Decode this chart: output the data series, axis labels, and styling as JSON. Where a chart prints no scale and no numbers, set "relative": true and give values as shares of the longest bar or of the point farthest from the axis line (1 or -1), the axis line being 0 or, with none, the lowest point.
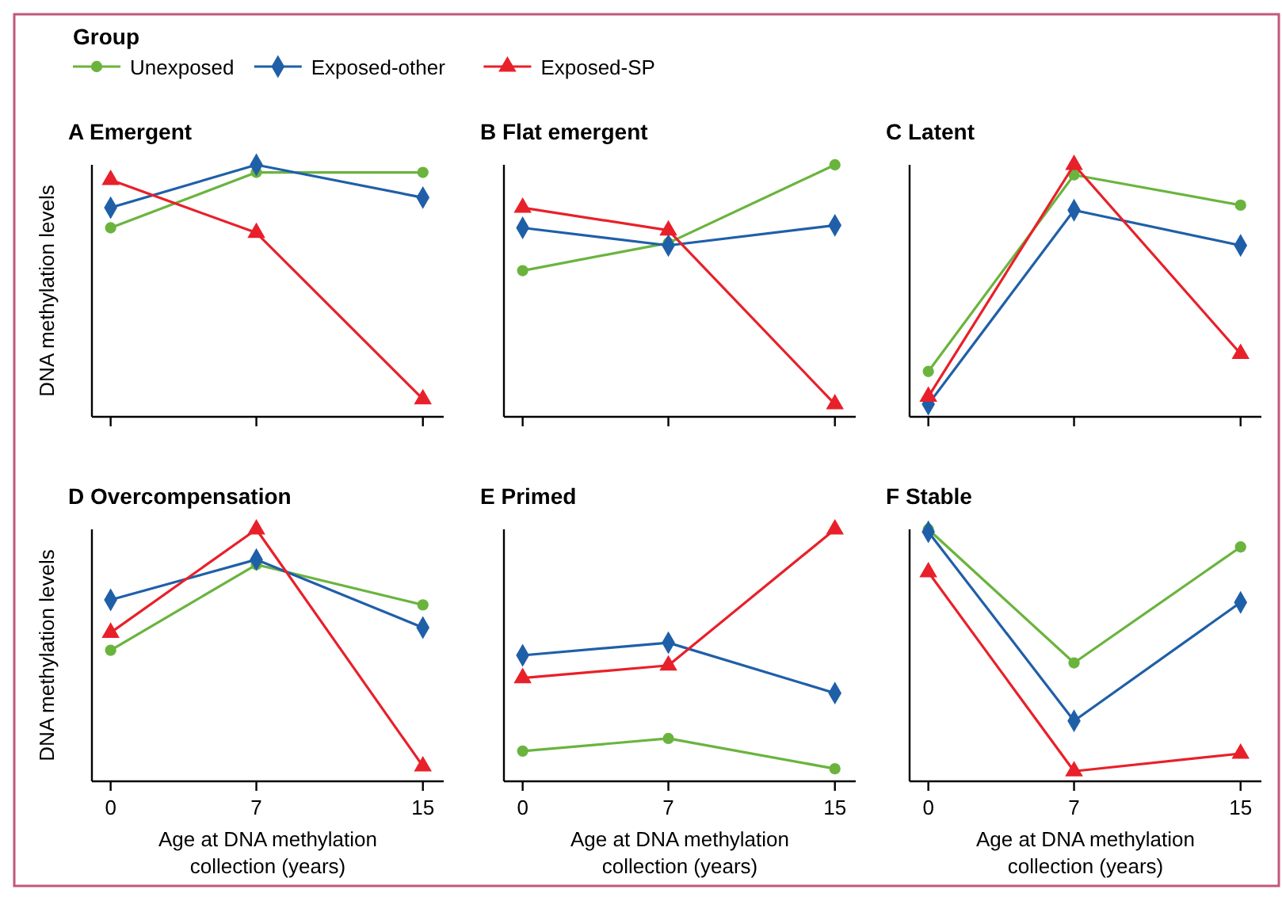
{
  "chart_data": [
    {
      "type": "line",
      "title": "A  Emergent",
      "ylabel": "DNA methylation levels",
      "relative": true,
      "x": [
        0,
        7,
        15
      ],
      "xlim": [
        -0.9,
        16
      ],
      "xticks": [
        0,
        7,
        15
      ],
      "tick_labels": false,
      "legend": "top",
      "legend_title": "Group",
      "series": [
        {
          "name": "Unexposed",
          "color": "#6ab43e",
          "marker": "circle",
          "values": [
            0.75,
            0.97,
            0.97
          ]
        },
        {
          "name": "Exposed-other",
          "color": "#1f5fa8",
          "marker": "diamond",
          "values": [
            0.83,
            1,
            0.87
          ]
        },
        {
          "name": "Exposed-SP",
          "color": "#e8202a",
          "marker": "triangle",
          "values": [
            0.94,
            0.73,
            0.07
          ]
        }
      ]
    },
    {
      "type": "line",
      "title": "B  Flat emergent",
      "relative": true,
      "x": [
        0,
        7,
        15
      ],
      "xlim": [
        -0.9,
        16
      ],
      "xticks": [
        0,
        7,
        15
      ],
      "tick_labels": false,
      "series": [
        {
          "color": "#6ab43e",
          "marker": "circle",
          "values": [
            0.58,
            0.69,
            1
          ]
        },
        {
          "color": "#1f5fa8",
          "marker": "diamond",
          "values": [
            0.75,
            0.68,
            0.76
          ]
        },
        {
          "color": "#e8202a",
          "marker": "triangle",
          "values": [
            0.83,
            0.74,
            0.05
          ]
        }
      ]
    },
    {
      "type": "line",
      "title": "C  Latent",
      "relative": true,
      "x": [
        0,
        7,
        15
      ],
      "xlim": [
        -0.9,
        16
      ],
      "xticks": [
        0,
        7,
        15
      ],
      "tick_labels": false,
      "series": [
        {
          "color": "#6ab43e",
          "marker": "circle",
          "values": [
            0.18,
            0.96,
            0.84
          ]
        },
        {
          "color": "#1f5fa8",
          "marker": "diamond",
          "values": [
            0.05,
            0.82,
            0.68
          ]
        },
        {
          "color": "#e8202a",
          "marker": "triangle",
          "values": [
            0.08,
            1,
            0.25
          ]
        }
      ]
    },
    {
      "type": "line",
      "title": "D  Overcompensation",
      "ylabel": "DNA methylation levels",
      "xlabel": "Age at DNA methylation collection (years)",
      "relative": true,
      "x": [
        0,
        7,
        15
      ],
      "xlim": [
        -0.9,
        16
      ],
      "xticks": [
        0,
        7,
        15
      ],
      "tick_labels": "x",
      "series": [
        {
          "color": "#6ab43e",
          "marker": "circle",
          "values": [
            0.52,
            0.86,
            0.7
          ]
        },
        {
          "color": "#1f5fa8",
          "marker": "diamond",
          "values": [
            0.72,
            0.88,
            0.61
          ]
        },
        {
          "color": "#e8202a",
          "marker": "triangle",
          "values": [
            0.59,
            1,
            0.06
          ]
        }
      ]
    },
    {
      "type": "line",
      "title": "E  Primed",
      "xlabel": "Age at DNA methylation collection (years)",
      "relative": true,
      "x": [
        0,
        7,
        15
      ],
      "xlim": [
        -0.9,
        16
      ],
      "xticks": [
        0,
        7,
        15
      ],
      "tick_labels": "x",
      "series": [
        {
          "color": "#6ab43e",
          "marker": "circle",
          "values": [
            0.12,
            0.17,
            0.05
          ]
        },
        {
          "color": "#1f5fa8",
          "marker": "diamond",
          "values": [
            0.5,
            0.55,
            0.35
          ]
        },
        {
          "color": "#e8202a",
          "marker": "triangle",
          "values": [
            0.41,
            0.46,
            1
          ]
        }
      ]
    },
    {
      "type": "line",
      "title": "F  Stable",
      "xlabel": "Age at DNA methylation collection (years)",
      "relative": true,
      "x": [
        0,
        7,
        15
      ],
      "xlim": [
        -0.9,
        16
      ],
      "xticks": [
        0,
        7,
        15
      ],
      "tick_labels": "x",
      "series": [
        {
          "color": "#6ab43e",
          "marker": "circle",
          "values": [
            1,
            0.47,
            0.93
          ]
        },
        {
          "color": "#1f5fa8",
          "marker": "diamond",
          "values": [
            0.99,
            0.24,
            0.71
          ]
        },
        {
          "color": "#e8202a",
          "marker": "triangle",
          "values": [
            0.83,
            0.04,
            0.11
          ]
        }
      ]
    }
  ]
}
